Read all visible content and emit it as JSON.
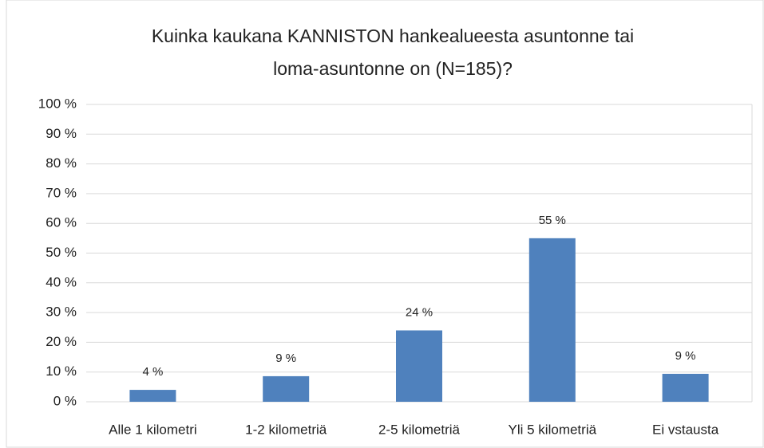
{
  "chart_data": {
    "type": "bar",
    "title": [
      "Kuinka kaukana KANNISTON hankealueesta asuntonne tai",
      "loma-asuntonne on (N=185)?"
    ],
    "categories": [
      "Alle 1 kilometri",
      "1-2 kilometriä",
      "2-5 kilometriä",
      "Yli 5 kilometriä",
      "Ei vstausta"
    ],
    "values": [
      4,
      8.6,
      24,
      55,
      9.4
    ],
    "value_labels": [
      "4 %",
      "9 %",
      "24 %",
      "55 %",
      "9 %"
    ],
    "color": "#4f81bd",
    "ylim": [
      0,
      100
    ],
    "yticks": [
      {
        "value": 0,
        "label": "0 %"
      },
      {
        "value": 10,
        "label": "10 %"
      },
      {
        "value": 20,
        "label": "20 %"
      },
      {
        "value": 30,
        "label": "30 %"
      },
      {
        "value": 40,
        "label": "40 %"
      },
      {
        "value": 50,
        "label": "50 %"
      },
      {
        "value": 60,
        "label": "60 %"
      },
      {
        "value": 70,
        "label": "70 %"
      },
      {
        "value": 80,
        "label": "80 %"
      },
      {
        "value": 90,
        "label": "90 %"
      },
      {
        "value": 100,
        "label": "100 %"
      }
    ],
    "grid": true
  }
}
